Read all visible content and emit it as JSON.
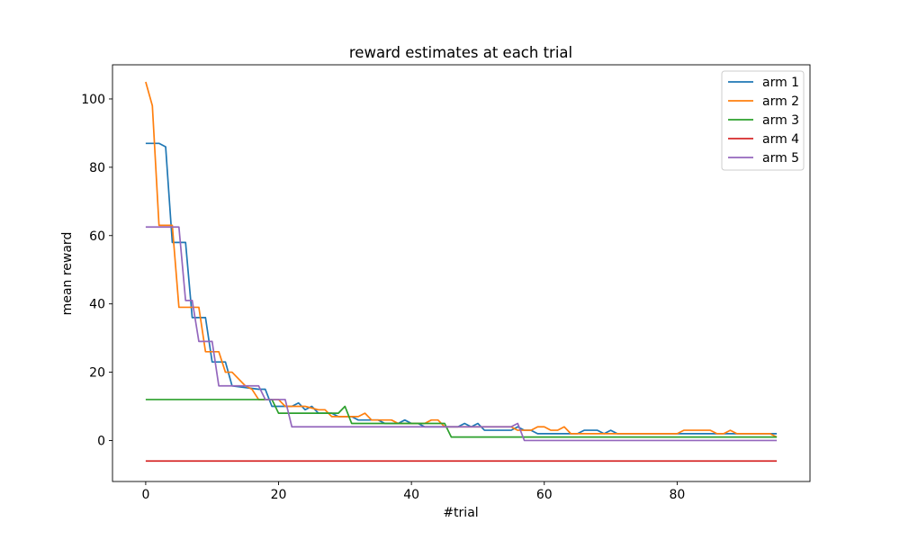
{
  "chart_data": {
    "type": "line",
    "title": "reward estimates at each trial",
    "xlabel": "#trial",
    "ylabel": "mean reward",
    "xlim": [
      -5,
      100
    ],
    "ylim": [
      -12,
      110
    ],
    "xticks": [
      0,
      20,
      40,
      60,
      80
    ],
    "yticks": [
      0,
      20,
      40,
      60,
      80,
      100
    ],
    "grid": false,
    "legend_position": "top-right",
    "series": [
      {
        "name": "arm 1",
        "color": "#1f77b4",
        "points": [
          [
            0,
            87
          ],
          [
            2,
            87
          ],
          [
            3,
            86
          ],
          [
            4,
            58
          ],
          [
            6,
            58
          ],
          [
            7,
            36
          ],
          [
            9,
            36
          ],
          [
            10,
            23
          ],
          [
            12,
            23
          ],
          [
            13,
            16
          ],
          [
            17,
            15
          ],
          [
            18,
            15
          ],
          [
            19,
            10
          ],
          [
            22,
            10
          ],
          [
            23,
            11
          ],
          [
            24,
            9
          ],
          [
            25,
            10
          ],
          [
            26,
            8
          ],
          [
            28,
            8
          ],
          [
            29,
            7
          ],
          [
            30,
            7
          ],
          [
            31,
            7
          ],
          [
            32,
            6
          ],
          [
            35,
            6
          ],
          [
            36,
            5
          ],
          [
            38,
            5
          ],
          [
            39,
            6
          ],
          [
            40,
            5
          ],
          [
            41,
            5
          ],
          [
            42,
            4
          ],
          [
            47,
            4
          ],
          [
            48,
            5
          ],
          [
            49,
            4
          ],
          [
            50,
            5
          ],
          [
            51,
            3
          ],
          [
            55,
            3
          ],
          [
            56,
            4
          ],
          [
            57,
            3
          ],
          [
            58,
            3
          ],
          [
            59,
            2
          ],
          [
            65,
            2
          ],
          [
            66,
            3
          ],
          [
            68,
            3
          ],
          [
            69,
            2
          ],
          [
            70,
            3
          ],
          [
            71,
            2
          ],
          [
            82,
            2
          ],
          [
            95,
            2
          ]
        ]
      },
      {
        "name": "arm 2",
        "color": "#ff7f0e",
        "points": [
          [
            0,
            105
          ],
          [
            1,
            98
          ],
          [
            2,
            63
          ],
          [
            4,
            63
          ],
          [
            5,
            39
          ],
          [
            8,
            39
          ],
          [
            9,
            26
          ],
          [
            11,
            26
          ],
          [
            12,
            20
          ],
          [
            13,
            20
          ],
          [
            15,
            16
          ],
          [
            16,
            15
          ],
          [
            17,
            12
          ],
          [
            20,
            12
          ],
          [
            21,
            10
          ],
          [
            23,
            10
          ],
          [
            24,
            10
          ],
          [
            26,
            9
          ],
          [
            27,
            9
          ],
          [
            28,
            7
          ],
          [
            32,
            7
          ],
          [
            33,
            8
          ],
          [
            34,
            6
          ],
          [
            37,
            6
          ],
          [
            38,
            5
          ],
          [
            42,
            5
          ],
          [
            43,
            6
          ],
          [
            44,
            6
          ],
          [
            45,
            4
          ],
          [
            55,
            4
          ],
          [
            56,
            3
          ],
          [
            58,
            3
          ],
          [
            59,
            4
          ],
          [
            60,
            4
          ],
          [
            61,
            3
          ],
          [
            62,
            3
          ],
          [
            63,
            4
          ],
          [
            64,
            2
          ],
          [
            80,
            2
          ],
          [
            81,
            3
          ],
          [
            85,
            3
          ],
          [
            86,
            2
          ],
          [
            87,
            2
          ],
          [
            88,
            3
          ],
          [
            89,
            2
          ],
          [
            94,
            2
          ],
          [
            95,
            1
          ]
        ]
      },
      {
        "name": "arm 3",
        "color": "#2ca02c",
        "points": [
          [
            0,
            12
          ],
          [
            18,
            12
          ],
          [
            19,
            12
          ],
          [
            20,
            8
          ],
          [
            27,
            8
          ],
          [
            29,
            8
          ],
          [
            30,
            10
          ],
          [
            31,
            5
          ],
          [
            44,
            5
          ],
          [
            45,
            5
          ],
          [
            46,
            1
          ],
          [
            95,
            1
          ]
        ]
      },
      {
        "name": "arm 4",
        "color": "#d62728",
        "points": [
          [
            0,
            -6
          ],
          [
            95,
            -6
          ]
        ]
      },
      {
        "name": "arm 5",
        "color": "#9467bd",
        "points": [
          [
            0,
            62.5
          ],
          [
            5,
            62.5
          ],
          [
            6,
            41
          ],
          [
            7,
            41
          ],
          [
            8,
            29
          ],
          [
            10,
            29
          ],
          [
            11,
            16
          ],
          [
            17,
            16
          ],
          [
            18,
            12
          ],
          [
            21,
            12
          ],
          [
            22,
            4
          ],
          [
            55,
            4
          ],
          [
            56,
            5
          ],
          [
            57,
            0
          ],
          [
            95,
            0
          ]
        ]
      }
    ]
  }
}
